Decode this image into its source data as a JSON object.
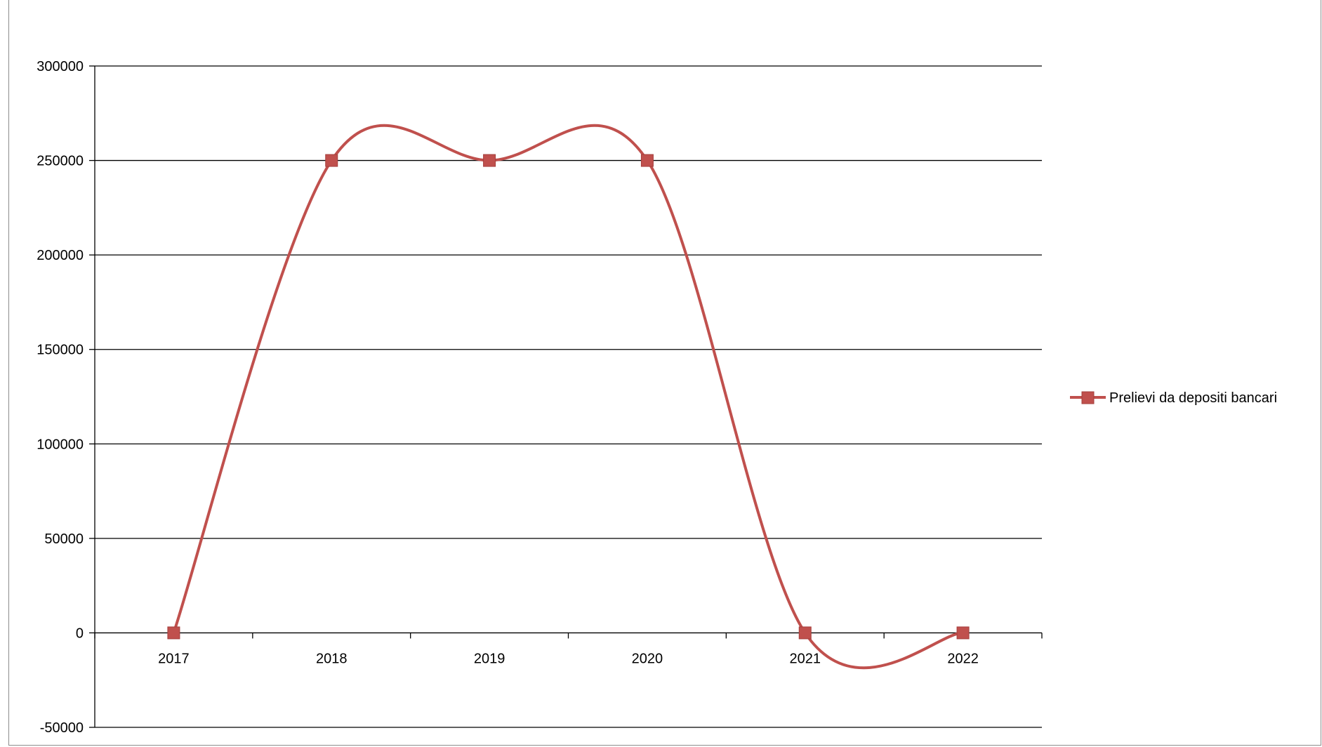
{
  "chart_data": {
    "type": "line",
    "smooth": true,
    "categories": [
      "2017",
      "2018",
      "2019",
      "2020",
      "2021",
      "2022"
    ],
    "series": [
      {
        "name": "Prelievi da depositi bancari",
        "values": [
          0,
          250000,
          250000,
          250000,
          0,
          0
        ],
        "color": "#c0504d",
        "marker": "square"
      }
    ],
    "y_ticks": [
      -50000,
      0,
      50000,
      100000,
      150000,
      200000,
      250000,
      300000
    ],
    "ylim": [
      -50000,
      300000
    ],
    "grid": true,
    "legend_position": "right"
  }
}
